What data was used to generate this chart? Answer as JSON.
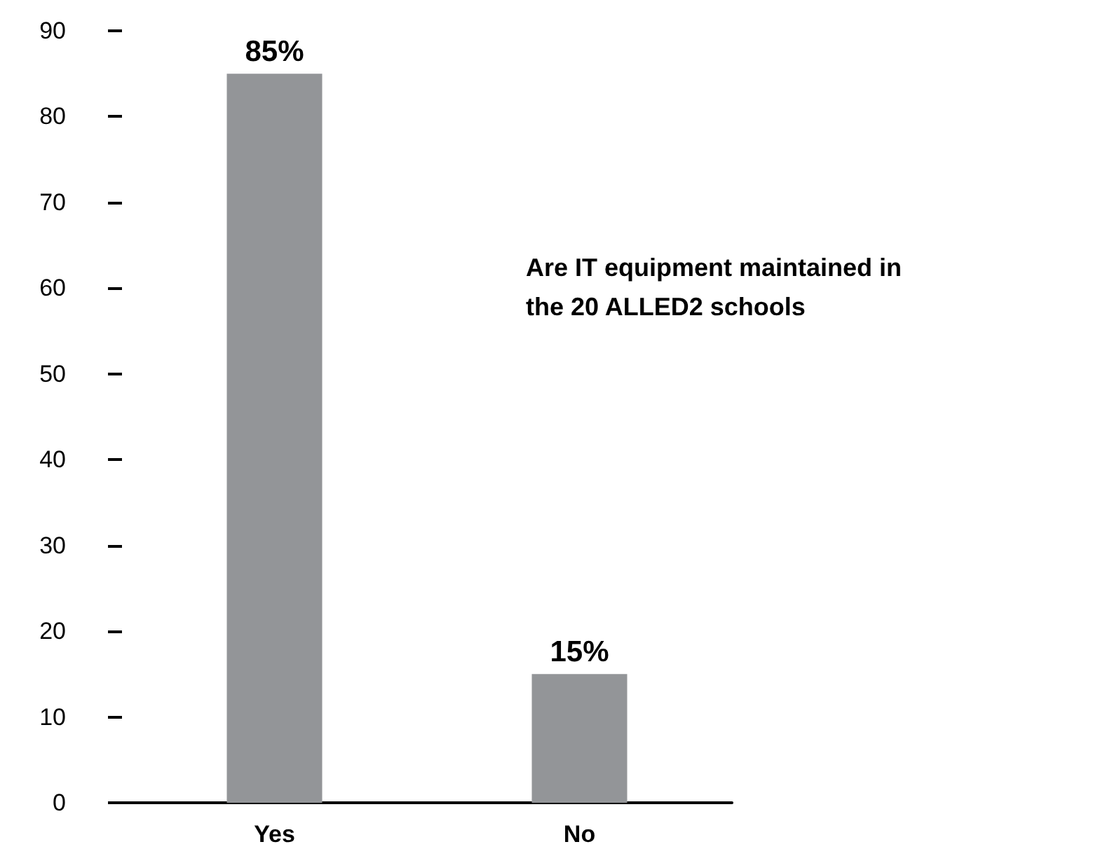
{
  "chart_data": {
    "type": "bar",
    "title": "Are IT equipment maintained in the 20 ALLED2 schools",
    "categories": [
      "Yes",
      "No"
    ],
    "values": [
      85,
      15
    ],
    "color": "#939598",
    "value_labels": [
      "85%",
      "15%"
    ],
    "ylim": [
      0,
      90
    ],
    "yticks": [
      0,
      10,
      20,
      30,
      40,
      50,
      60,
      70,
      80,
      90
    ],
    "grid": false
  }
}
